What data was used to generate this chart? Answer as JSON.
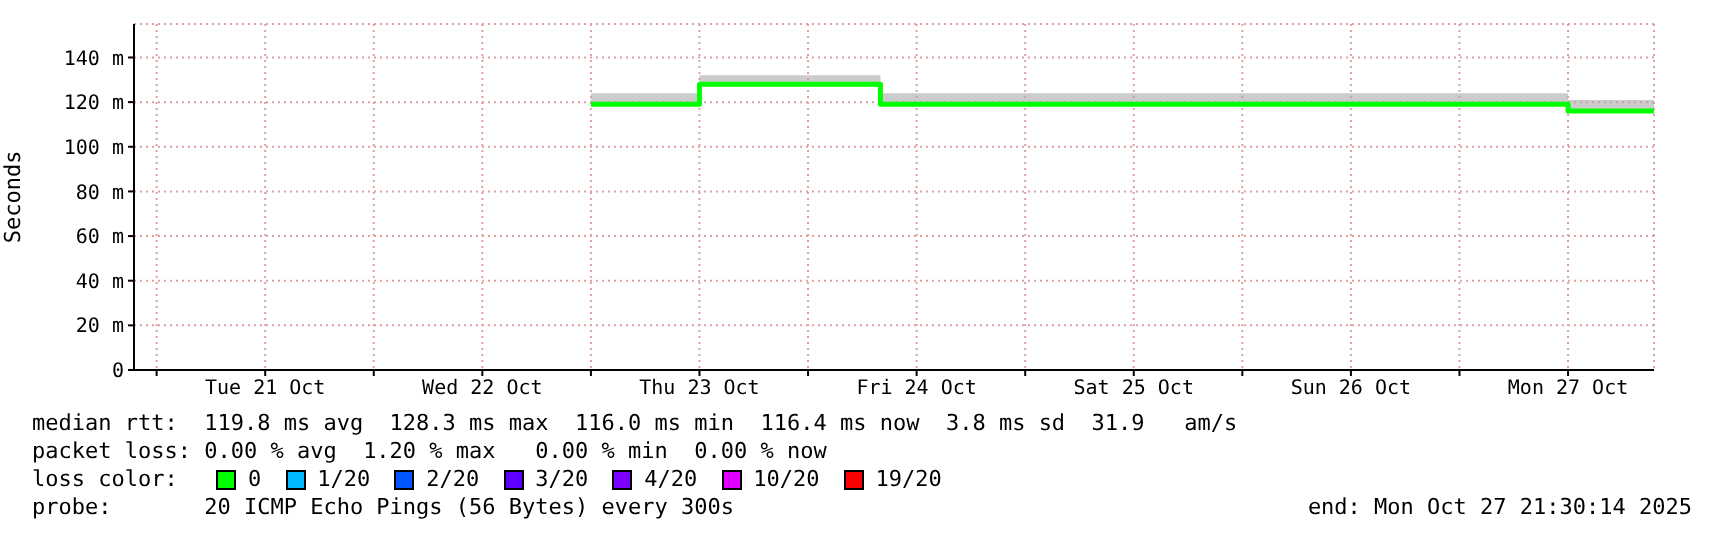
{
  "chart_data": {
    "type": "step",
    "ylabel": "Seconds",
    "xlim": [
      "2025-10-20T21:30",
      "2025-10-27T21:30"
    ],
    "xticks": [
      {
        "value": "2025-10-21T00:00",
        "label": null
      },
      {
        "value": "2025-10-21T12:00",
        "label": "Tue 21 Oct"
      },
      {
        "value": "2025-10-22T00:00",
        "label": null
      },
      {
        "value": "2025-10-22T12:00",
        "label": "Wed 22 Oct"
      },
      {
        "value": "2025-10-23T00:00",
        "label": null
      },
      {
        "value": "2025-10-23T12:00",
        "label": "Thu 23 Oct"
      },
      {
        "value": "2025-10-24T00:00",
        "label": null
      },
      {
        "value": "2025-10-24T12:00",
        "label": "Fri 24 Oct"
      },
      {
        "value": "2025-10-25T00:00",
        "label": null
      },
      {
        "value": "2025-10-25T12:00",
        "label": "Sat 25 Oct"
      },
      {
        "value": "2025-10-26T00:00",
        "label": null
      },
      {
        "value": "2025-10-26T12:00",
        "label": "Sun 26 Oct"
      },
      {
        "value": "2025-10-27T00:00",
        "label": null
      },
      {
        "value": "2025-10-27T12:00",
        "label": "Mon 27 Oct"
      }
    ],
    "ylim": [
      0,
      155
    ],
    "yticks": [
      0,
      {
        "value": 20,
        "label": "20 m"
      },
      {
        "value": 40,
        "label": "40 m"
      },
      {
        "value": 60,
        "label": "60 m"
      },
      {
        "value": 80,
        "label": "80 m"
      },
      {
        "value": 100,
        "label": "100 m"
      },
      {
        "value": 120,
        "label": "120 m"
      },
      {
        "value": 140,
        "label": "140 m"
      }
    ],
    "grid": true,
    "legend": false,
    "series": [
      {
        "color": "#00ff00",
        "x": [
          "2025-10-23T00:00",
          "2025-10-23T12:00",
          "2025-10-24T08:00",
          "2025-10-27T12:00",
          "2025-10-27T21:30"
        ],
        "values": [
          119,
          128,
          119,
          116,
          116
        ],
        "lower": [
          119,
          128,
          119,
          116,
          116
        ],
        "upper": [
          124,
          132,
          124,
          121,
          121
        ]
      }
    ],
    "annotations": [
      "median rtt:  119.8 ms avg  128.3 ms max  116.0 ms min  116.4 ms now  3.8 ms sd  31.9   am/s",
      "packet loss: 0.00 % avg  1.20 % max   0.00 % min  0.00 % now",
      "loss color:",
      "0",
      "1/20",
      "2/20",
      "3/20",
      "4/20",
      "10/20",
      "19/20",
      "probe:       20 ICMP Echo Pings (56 Bytes) every 300s",
      "end: Mon Oct 27 21:30:14 2025"
    ]
  }
}
